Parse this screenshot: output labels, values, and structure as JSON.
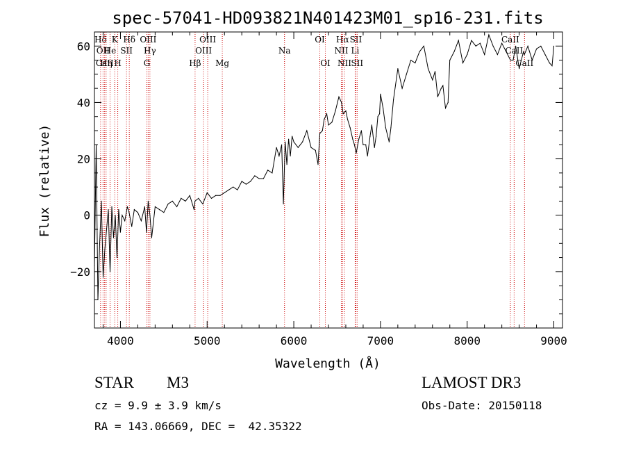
{
  "chart_data": {
    "type": "line",
    "title": "spec-57041-HD093821N401423M01_sp16-231.fits",
    "xlabel": "Wavelength (Å)",
    "ylabel": "Flux (relative)",
    "xlim": [
      3700,
      9100
    ],
    "ylim": [
      -40,
      65
    ],
    "xticks": [
      4000,
      5000,
      6000,
      7000,
      8000,
      9000
    ],
    "yticks": [
      -20,
      0,
      20,
      40,
      60
    ],
    "grid": false,
    "series": [
      {
        "name": "flux",
        "x": [
          3700,
          3720,
          3740,
          3760,
          3780,
          3800,
          3820,
          3840,
          3860,
          3880,
          3900,
          3920,
          3940,
          3960,
          3980,
          4000,
          4020,
          4050,
          4080,
          4100,
          4130,
          4160,
          4200,
          4240,
          4280,
          4300,
          4320,
          4340,
          4360,
          4400,
          4450,
          4500,
          4550,
          4600,
          4650,
          4700,
          4750,
          4800,
          4850,
          4860,
          4900,
          4950,
          5000,
          5050,
          5100,
          5150,
          5200,
          5250,
          5300,
          5350,
          5400,
          5450,
          5500,
          5550,
          5600,
          5650,
          5700,
          5750,
          5800,
          5830,
          5860,
          5880,
          5900,
          5920,
          5940,
          5960,
          5980,
          6000,
          6050,
          6100,
          6150,
          6200,
          6250,
          6280,
          6300,
          6330,
          6350,
          6380,
          6400,
          6440,
          6480,
          6520,
          6550,
          6570,
          6600,
          6620,
          6650,
          6680,
          6700,
          6720,
          6750,
          6780,
          6800,
          6830,
          6850,
          6880,
          6900,
          6930,
          6950,
          6970,
          6990,
          7000,
          7030,
          7060,
          7100,
          7120,
          7150,
          7200,
          7250,
          7300,
          7350,
          7400,
          7450,
          7500,
          7550,
          7600,
          7630,
          7660,
          7700,
          7720,
          7750,
          7780,
          7800,
          7850,
          7900,
          7950,
          8000,
          8050,
          8100,
          8150,
          8200,
          8250,
          8300,
          8350,
          8400,
          8450,
          8500,
          8530,
          8560,
          8600,
          8650,
          8660,
          8700,
          8750,
          8800,
          8850,
          8900,
          8950,
          8980,
          9000
        ],
        "values": [
          -18,
          25,
          -30,
          -10,
          5,
          -22,
          -12,
          -5,
          2,
          -20,
          3,
          -8,
          0,
          -15,
          2,
          -6,
          0,
          -2,
          3,
          1,
          -4,
          2,
          1,
          -2,
          3,
          -6,
          5,
          0,
          -8,
          3,
          2,
          1,
          4,
          5,
          3,
          6,
          5,
          7,
          2,
          5,
          6,
          4,
          8,
          6,
          7,
          7,
          8,
          9,
          10,
          9,
          12,
          11,
          12,
          14,
          13,
          13,
          16,
          15,
          24,
          21,
          25,
          4,
          26,
          18,
          27,
          21,
          28,
          26,
          24,
          26,
          30,
          24,
          23,
          18,
          29,
          30,
          34,
          36,
          32,
          33,
          37,
          42,
          40,
          36,
          37,
          34,
          31,
          27,
          25,
          22,
          27,
          30,
          25,
          25,
          21,
          28,
          32,
          24,
          28,
          35,
          36,
          43,
          38,
          31,
          26,
          31,
          41,
          52,
          45,
          50,
          55,
          54,
          58,
          60,
          52,
          48,
          51,
          42,
          45,
          46,
          38,
          40,
          55,
          58,
          62,
          54,
          57,
          62,
          60,
          61,
          57,
          64,
          60,
          57,
          61,
          58,
          55,
          55,
          60,
          52,
          58,
          57,
          60,
          55,
          59,
          60,
          57,
          54,
          53,
          60
        ]
      }
    ],
    "line_markers": [
      {
        "label": "Hδ",
        "x": 3771,
        "row": 1
      },
      {
        "label": "OII",
        "x": 3799,
        "row": 2
      },
      {
        "label": "CaII",
        "x": 3818,
        "row": 3
      },
      {
        "label": "Hη",
        "x": 3835,
        "row": 3
      },
      {
        "label": "He",
        "x": 3880,
        "row": 2
      },
      {
        "label": "K",
        "x": 3934,
        "row": 1
      },
      {
        "label": "H",
        "x": 3969,
        "row": 3
      },
      {
        "label": "SII",
        "x": 4070,
        "row": 2
      },
      {
        "label": "Hδ",
        "x": 4102,
        "row": 1
      },
      {
        "label": "OIII",
        "x": 4320,
        "row": 1
      },
      {
        "label": "Hγ",
        "x": 4340,
        "row": 2
      },
      {
        "label": "G",
        "x": 4305,
        "row": 3
      },
      {
        "label": "Hβ",
        "x": 4861,
        "row": 3
      },
      {
        "label": "OIII",
        "x": 5007,
        "row": 1
      },
      {
        "label": "OIII",
        "x": 4959,
        "row": 2
      },
      {
        "label": "Mg",
        "x": 5175,
        "row": 3
      },
      {
        "label": "Na",
        "x": 5893,
        "row": 2
      },
      {
        "label": "OI",
        "x": 6300,
        "row": 1
      },
      {
        "label": "OI",
        "x": 6364,
        "row": 3
      },
      {
        "label": "Hα",
        "x": 6563,
        "row": 1
      },
      {
        "label": "NII",
        "x": 6548,
        "row": 2
      },
      {
        "label": "NII",
        "x": 6584,
        "row": 3
      },
      {
        "label": "SII",
        "x": 6716,
        "row": 1
      },
      {
        "label": "Li",
        "x": 6708,
        "row": 2
      },
      {
        "label": "SII",
        "x": 6731,
        "row": 3
      },
      {
        "label": "CaII",
        "x": 8498,
        "row": 1
      },
      {
        "label": "CaII",
        "x": 8542,
        "row": 2
      },
      {
        "label": "CaII",
        "x": 8662,
        "row": 3
      }
    ]
  },
  "info": {
    "object_class": "STAR",
    "subclass": "M3",
    "survey": "LAMOST DR3",
    "cz": "cz = 9.9 ± 3.9 km/s",
    "obs_date": "Obs-Date: 20150118",
    "coords": "RA = 143.06669, DEC =  42.35322"
  },
  "colors": {
    "axis": "#000000",
    "line": "#000000",
    "marker": "#cc0000"
  }
}
